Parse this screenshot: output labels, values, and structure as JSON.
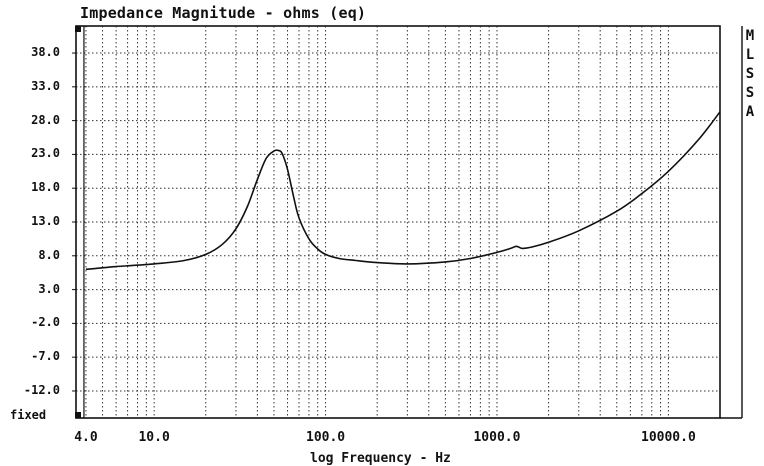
{
  "chart_data": {
    "type": "line",
    "title": "Impedance Magnitude - ohms (eq)",
    "xlabel": "log Frequency - Hz",
    "x_scale": "log",
    "xlim": [
      3.5,
      20000
    ],
    "ylim": [
      -16,
      42
    ],
    "y_ticks": [
      "38.0",
      "33.0",
      "28.0",
      "23.0",
      "18.0",
      "13.0",
      "8.0",
      "3.0",
      "-2.0",
      "-7.0",
      "-12.0"
    ],
    "y_tick_values": [
      38,
      33,
      28,
      23,
      18,
      13,
      8,
      3,
      -2,
      -7,
      -12
    ],
    "y_bottom_label": "fixed",
    "x_ticks": [
      "4.0",
      "10.0",
      "100.0",
      "1000.0",
      "10000.0"
    ],
    "x_tick_values": [
      4,
      10,
      100,
      1000,
      10000
    ],
    "grid": true,
    "side_label_letters": [
      "M",
      "L",
      "S",
      "S",
      "A"
    ],
    "series": [
      {
        "x": [
          4,
          6,
          10,
          15,
          20,
          25,
          30,
          35,
          40,
          45,
          50,
          53,
          55,
          57,
          60,
          65,
          70,
          80,
          90,
          100,
          120,
          150,
          200,
          300,
          500,
          700,
          1000,
          1200,
          1300,
          1400,
          1600,
          2000,
          3000,
          5000,
          7000,
          10000,
          15000,
          20000
        ],
        "y": [
          6.0,
          6.4,
          6.8,
          7.3,
          8.2,
          9.7,
          12.0,
          15.3,
          19.3,
          22.4,
          23.5,
          23.6,
          23.4,
          22.6,
          20.8,
          16.8,
          13.6,
          10.5,
          9.0,
          8.2,
          7.6,
          7.3,
          7.0,
          6.8,
          7.1,
          7.6,
          8.5,
          9.1,
          9.4,
          9.1,
          9.3,
          10.0,
          11.7,
          14.6,
          17.2,
          20.5,
          25.2,
          29.3
        ]
      }
    ]
  }
}
